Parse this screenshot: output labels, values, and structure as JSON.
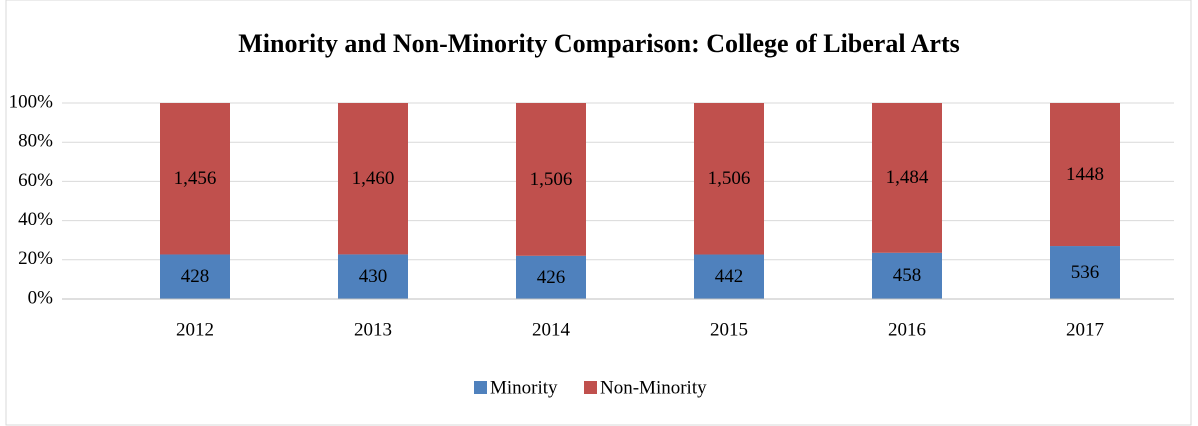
{
  "chart_data": {
    "type": "bar",
    "stack": "percent",
    "title": "Minority and Non-Minority Comparison: College of Liberal Arts",
    "categories": [
      "2012",
      "2013",
      "2014",
      "2015",
      "2016",
      "2017"
    ],
    "series": [
      {
        "name": "Minority",
        "color": "#4f81bd",
        "values": [
          428,
          430,
          426,
          442,
          458,
          536
        ]
      },
      {
        "name": "Non-Minority",
        "color": "#c0504d",
        "values": [
          1456,
          1460,
          1506,
          1506,
          1484,
          1448
        ],
        "value_labels": [
          "1,456",
          "1,460",
          "1,506",
          "1,506",
          "1,484",
          "1448"
        ]
      }
    ],
    "ylim": [
      0,
      100
    ],
    "yticks": [
      {
        "value": 0,
        "label": "0%"
      },
      {
        "value": 20,
        "label": "20%"
      },
      {
        "value": 40,
        "label": "40%"
      },
      {
        "value": 60,
        "label": "60%"
      },
      {
        "value": 80,
        "label": "80%"
      },
      {
        "value": 100,
        "label": "100%"
      }
    ],
    "grid": true,
    "legend": "bottom"
  }
}
